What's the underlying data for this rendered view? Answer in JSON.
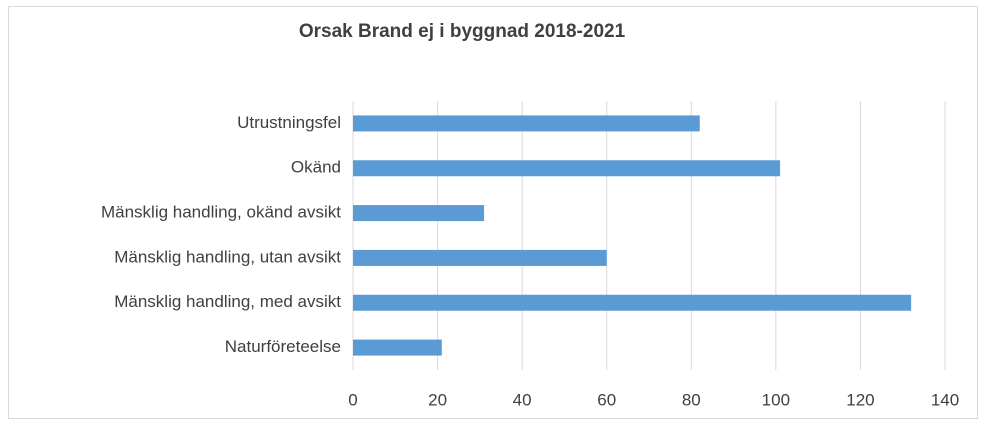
{
  "chart_data": {
    "type": "barh",
    "title": "Orsak Brand ej i byggnad 2018-2021",
    "categories": [
      "Utrustningsfel",
      "Okänd",
      "Mänsklig handling, okänd avsikt",
      "Mänsklig handling, utan avsikt",
      "Mänsklig handling, med avsikt",
      "Naturföreteelse"
    ],
    "values": [
      82,
      101,
      31,
      60,
      132,
      21
    ],
    "color": "#5b9bd5",
    "xlim": [
      0,
      140
    ],
    "xticks": [
      0,
      20,
      40,
      60,
      80,
      100,
      120,
      140
    ],
    "grid": true
  }
}
